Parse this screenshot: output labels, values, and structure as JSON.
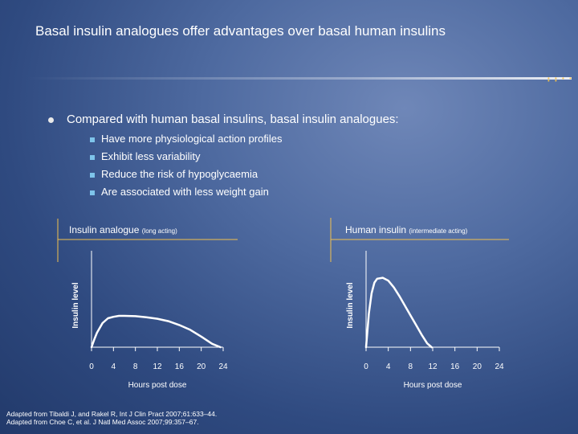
{
  "title": "Basal insulin analogues offer advantages over basal human insulins",
  "bullet": {
    "main": "Compared with human basal insulins, basal insulin analogues:",
    "subs": [
      "Have more physiological action profiles",
      "Exhibit less variability",
      "Reduce the risk of hypoglycaemia",
      "Are associated with less weight gain"
    ]
  },
  "colors": {
    "accent": "#f2c14e",
    "curve": "#ffffff",
    "bullet_square": "#7ec4ea"
  },
  "chart_data": [
    {
      "type": "line",
      "title": "Insulin analogue",
      "subtitle": "(long acting)",
      "xlabel": "Hours post dose",
      "ylabel": "Insulin level",
      "x_ticks": [
        "0",
        "4",
        "8",
        "12",
        "16",
        "20",
        "24"
      ],
      "xlim": [
        0,
        24
      ],
      "ylim": [
        0,
        10
      ],
      "series": [
        {
          "name": "Insulin analogue",
          "x": [
            0,
            0.5,
            1,
            2,
            3,
            4,
            5,
            6,
            8,
            10,
            12,
            14,
            16,
            18,
            20,
            22,
            23.5
          ],
          "y": [
            0,
            0.8,
            1.5,
            2.5,
            3.0,
            3.15,
            3.25,
            3.25,
            3.22,
            3.1,
            2.95,
            2.7,
            2.3,
            1.8,
            1.1,
            0.35,
            0
          ]
        }
      ]
    },
    {
      "type": "line",
      "title": "Human insulin",
      "subtitle": "(intermediate acting)",
      "xlabel": "Hours post dose",
      "ylabel": "Insulin level",
      "x_ticks": [
        "0",
        "4",
        "8",
        "12",
        "16",
        "20",
        "24"
      ],
      "xlim": [
        0,
        24
      ],
      "ylim": [
        0,
        10
      ],
      "series": [
        {
          "name": "Human insulin",
          "x": [
            0,
            0.5,
            1,
            1.5,
            2,
            3,
            4,
            5,
            6,
            7,
            8,
            9,
            10,
            11,
            11.8
          ],
          "y": [
            0,
            3.5,
            5.6,
            6.7,
            7.1,
            7.2,
            6.9,
            6.2,
            5.3,
            4.3,
            3.3,
            2.3,
            1.3,
            0.4,
            0
          ]
        }
      ]
    }
  ],
  "citations": [
    "Adapted from Tibaldi J, and Rakel R, Int J Clin Pract 2007;61:633–44.",
    "Adapted from Choe C, et al. J Natl Med Assoc 2007;99:357–67."
  ]
}
